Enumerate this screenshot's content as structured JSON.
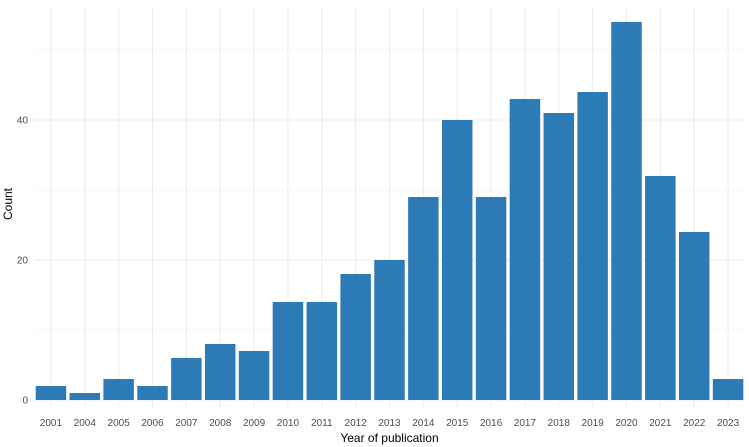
{
  "chart_data": {
    "type": "bar",
    "title": "",
    "xlabel": "Year of publication",
    "ylabel": "Count",
    "categories": [
      "2001",
      "2004",
      "2005",
      "2006",
      "2007",
      "2008",
      "2009",
      "2010",
      "2011",
      "2012",
      "2013",
      "2014",
      "2015",
      "2016",
      "2017",
      "2018",
      "2019",
      "2020",
      "2021",
      "2022",
      "2023"
    ],
    "values": [
      2,
      1,
      3,
      2,
      6,
      8,
      7,
      14,
      14,
      18,
      20,
      29,
      40,
      29,
      43,
      41,
      44,
      54,
      32,
      24,
      3
    ],
    "ylim": [
      0,
      56
    ],
    "yticks": [
      0,
      20,
      40
    ],
    "ytick_labels": [
      "0",
      "20",
      "40"
    ],
    "grid": true,
    "legend": "none",
    "bar_color": "#2c7bb6"
  }
}
